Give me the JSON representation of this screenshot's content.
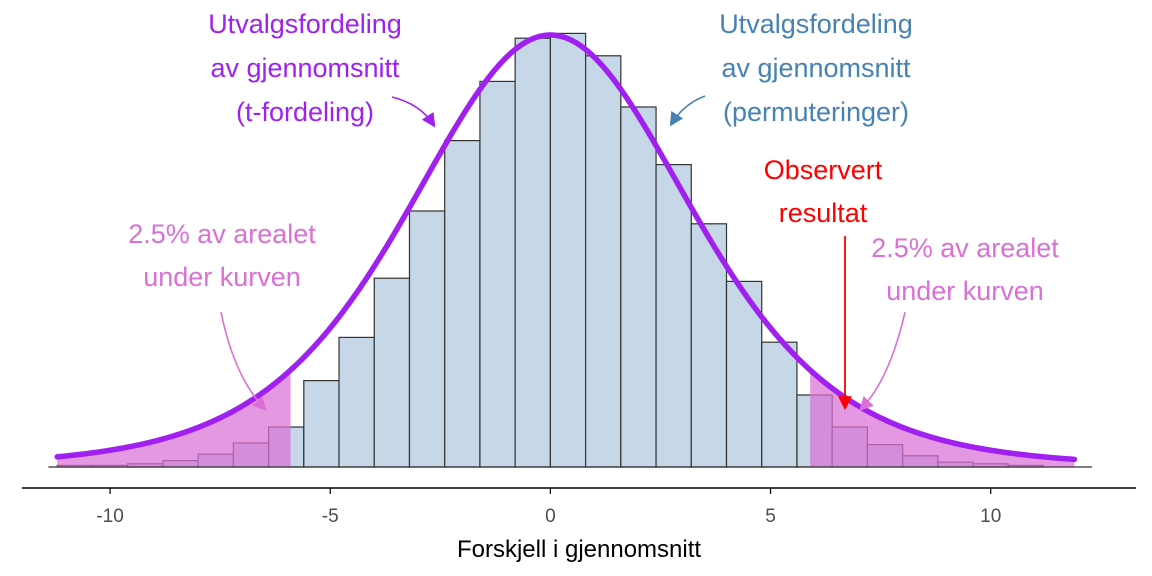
{
  "chart_data": {
    "type": "bar",
    "title": "",
    "xlabel": "Forskjell i gjennomsnitt",
    "ylabel": "",
    "xlim": [
      -12,
      13.3
    ],
    "xticks": [
      -10,
      -5,
      0,
      5,
      10
    ],
    "grid": false,
    "legend": "none",
    "histogram": {
      "name": "",
      "bin_width": 0.8,
      "bins": [
        {
          "x0": -11.2,
          "x1": -10.4,
          "count": 1
        },
        {
          "x0": -10.4,
          "x1": -9.6,
          "count": 1
        },
        {
          "x0": -9.6,
          "x1": -8.8,
          "count": 2
        },
        {
          "x0": -8.8,
          "x1": -8.0,
          "count": 4
        },
        {
          "x0": -8.0,
          "x1": -7.2,
          "count": 8
        },
        {
          "x0": -7.2,
          "x1": -6.4,
          "count": 15
        },
        {
          "x0": -6.4,
          "x1": -5.6,
          "count": 25
        },
        {
          "x0": -5.6,
          "x1": -4.8,
          "count": 54
        },
        {
          "x0": -4.8,
          "x1": -4.0,
          "count": 81
        },
        {
          "x0": -4.0,
          "x1": -3.2,
          "count": 118
        },
        {
          "x0": -3.2,
          "x1": -2.4,
          "count": 160
        },
        {
          "x0": -2.4,
          "x1": -1.6,
          "count": 204
        },
        {
          "x0": -1.6,
          "x1": -0.8,
          "count": 241
        },
        {
          "x0": -0.8,
          "x1": 0.0,
          "count": 268
        },
        {
          "x0": 0.0,
          "x1": 0.8,
          "count": 271
        },
        {
          "x0": 0.8,
          "x1": 1.6,
          "count": 257
        },
        {
          "x0": 1.6,
          "x1": 2.4,
          "count": 225
        },
        {
          "x0": 2.4,
          "x1": 3.2,
          "count": 189
        },
        {
          "x0": 3.2,
          "x1": 4.0,
          "count": 152
        },
        {
          "x0": 4.0,
          "x1": 4.8,
          "count": 116
        },
        {
          "x0": 4.8,
          "x1": 5.6,
          "count": 78
        },
        {
          "x0": 5.6,
          "x1": 6.4,
          "count": 45
        },
        {
          "x0": 6.4,
          "x1": 7.2,
          "count": 25
        },
        {
          "x0": 7.2,
          "x1": 8.0,
          "count": 14
        },
        {
          "x0": 8.0,
          "x1": 8.8,
          "count": 7
        },
        {
          "x0": 8.8,
          "x1": 9.6,
          "count": 3
        },
        {
          "x0": 9.6,
          "x1": 10.4,
          "count": 2
        },
        {
          "x0": 10.4,
          "x1": 11.2,
          "count": 1
        }
      ],
      "fill": "#c6d7e8",
      "stroke": "#333333"
    },
    "density_curve": {
      "distribution": "t",
      "peak_count": 270,
      "scale": 3.3,
      "x_range": [
        -11.2,
        11.9
      ],
      "color": "#a020f0"
    },
    "shaded_tails": {
      "color": "#da70d6",
      "left_cutoff": -5.9,
      "right_cutoff": 5.9,
      "area_each": "2.5%"
    },
    "observed_result": {
      "x": 6.6,
      "color": "#ff0000"
    },
    "annotations": {
      "t_dist": {
        "lines": [
          "Utvalgsfordeling",
          "av gjennomsnitt",
          "(t-fordeling)"
        ],
        "color": "#a020f0"
      },
      "perm_dist": {
        "lines": [
          "Utvalgsfordeling",
          "av gjennomsnitt",
          "(permuteringer)"
        ],
        "color": "#4682b4"
      },
      "observed": {
        "lines": [
          "Observert",
          "resultat"
        ],
        "color": "#ff0000"
      },
      "left_tail": {
        "lines": [
          "2.5% av arealet",
          "under kurven"
        ],
        "color": "#da70d6"
      },
      "right_tail": {
        "lines": [
          "2.5% av arealet",
          "under kurven"
        ],
        "color": "#da70d6"
      }
    }
  }
}
